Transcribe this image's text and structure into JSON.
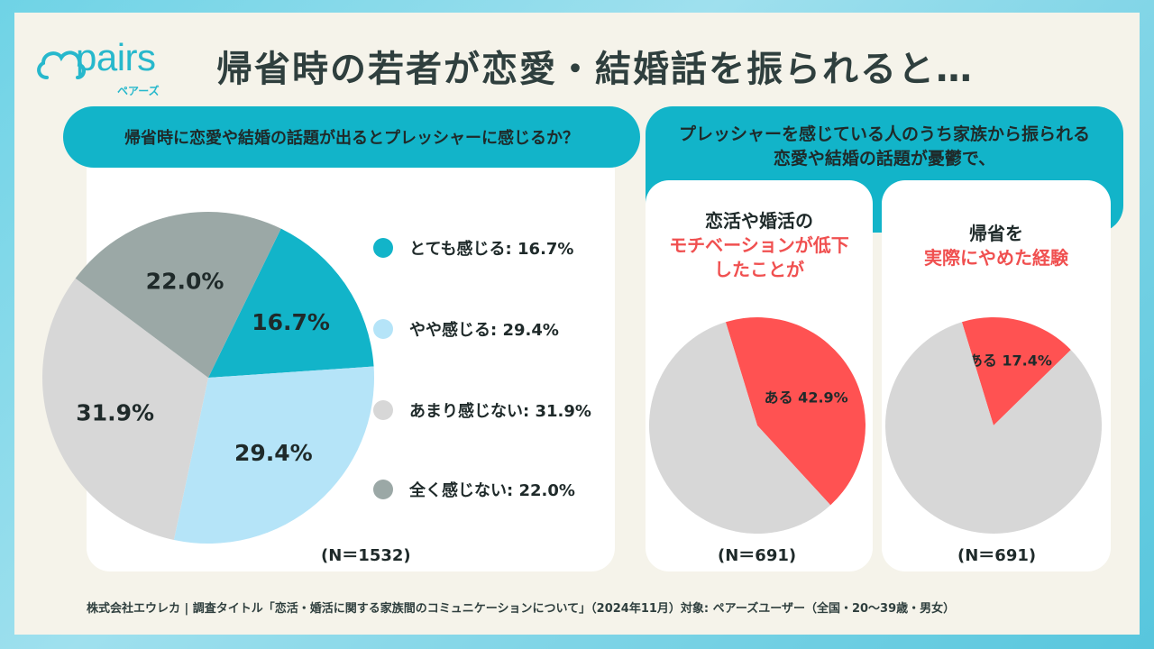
{
  "header": {
    "logo_text": "pairs",
    "logo_sub": "ペアーズ",
    "title": "帰省時の若者が恋愛・結婚話を振られると…"
  },
  "left_panel": {
    "question": "帰省時に恋愛や結婚の話題が出るとプレッシャーに感じるか？",
    "n_label": "(N＝1532)"
  },
  "right_panel": {
    "header_line1": "プレッシャーを感じている人のうち家族から振られる",
    "header_line2": "恋愛や結婚の話題が憂鬱で、",
    "card1": {
      "line1": "恋活や婚活の",
      "line2": "モチベーションが低下",
      "line3": "したことが",
      "n_label": "(N＝691)"
    },
    "card2": {
      "line1": "帰省を",
      "line2": "実際にやめた経験",
      "n_label": "(N＝691)"
    }
  },
  "chart_data": [
    {
      "type": "pie",
      "title": "帰省時に恋愛や結婚の話題が出るとプレッシャーに感じるか？",
      "slices": [
        {
          "label": "とても感じる",
          "value": 16.7,
          "pie_label": "16.7%",
          "legend": "とても感じる: 16.7%",
          "color": "#12b4c9"
        },
        {
          "label": "やや感じる",
          "value": 29.4,
          "pie_label": "29.4%",
          "legend": "やや感じる: 29.4%",
          "color": "#b5e4f8"
        },
        {
          "label": "あまり感じない",
          "value": 31.9,
          "pie_label": "31.9%",
          "legend": "あまり感じない: 31.9%",
          "color": "#d7d7d7"
        },
        {
          "label": "全く感じない",
          "value": 22.0,
          "pie_label": "22.0%",
          "legend": "全く感じない: 22.0%",
          "color": "#9ba8a6"
        }
      ],
      "legend_position": "right"
    },
    {
      "type": "pie",
      "slices": [
        {
          "label": "ある",
          "value": 42.9,
          "pie_label": "ある 42.9%",
          "color": "#ff5252"
        },
        {
          "label": "",
          "value": 57.1,
          "pie_label": "",
          "color": "#d7d7d7"
        }
      ]
    },
    {
      "type": "pie",
      "slices": [
        {
          "label": "ある",
          "value": 17.4,
          "pie_label": "ある 17.4%",
          "color": "#ff5252"
        },
        {
          "label": "",
          "value": 82.6,
          "pie_label": "",
          "color": "#d7d7d7"
        }
      ]
    }
  ],
  "footer": {
    "text": "株式会社エウレカ | 調査タイトル「恋活・婚活に関する家族間のコミュニケーションについて」（2024年11月）対象: ペアーズユーザー（全国・20〜39歳・男女）"
  }
}
